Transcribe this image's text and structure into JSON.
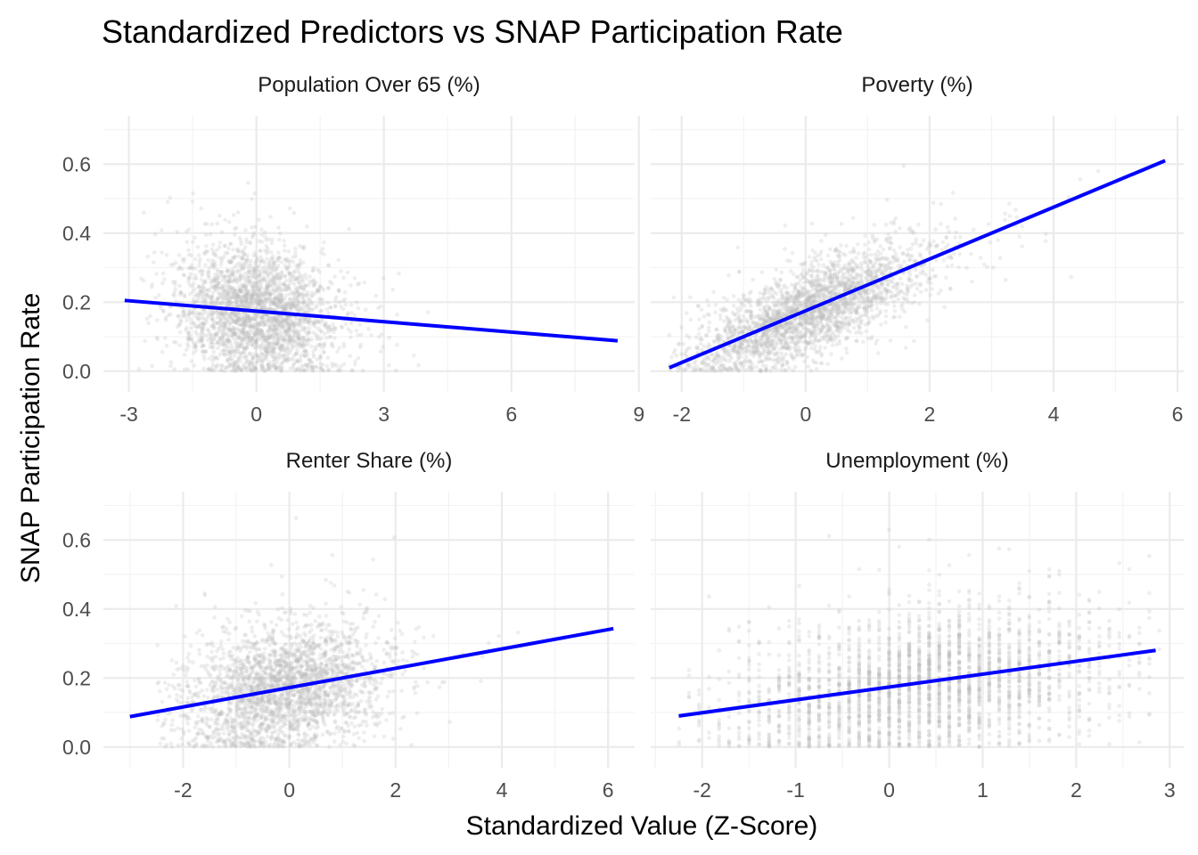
{
  "chart_data": {
    "type": "scatter",
    "title": "Standardized Predictors vs SNAP Participation Rate",
    "xlabel": "Standardized Value (Z-Score)",
    "ylabel": "SNAP Participation Rate",
    "point_color": "#bdbdbd",
    "line_color": "#0000ff",
    "ylim": [
      -0.06,
      0.74
    ],
    "y_ticks": [
      "0.0",
      "0.2",
      "0.4",
      "0.6"
    ],
    "y_tick_values": [
      0,
      0.2,
      0.4,
      0.6
    ],
    "grid": true,
    "panels": [
      {
        "name": "Population Over 65 (%)",
        "x_ticks": [
          "-3",
          "0",
          "3",
          "6",
          "9"
        ],
        "x_tick_values": [
          -3,
          0,
          3,
          6,
          9
        ],
        "xlim": [
          -3.6,
          8.9
        ],
        "trend": {
          "x": [
            -3.1,
            8.5
          ],
          "y": [
            0.205,
            0.088
          ]
        },
        "cloud": {
          "x_min": -2.8,
          "x_max": 4.5,
          "x_center": 0.0,
          "x_sd": 0.9,
          "y_center": 0.17,
          "y_sd": 0.09,
          "slope": -0.01
        }
      },
      {
        "name": "Poverty (%)",
        "x_ticks": [
          "-2",
          "0",
          "2",
          "4",
          "6"
        ],
        "x_tick_values": [
          -2,
          0,
          2,
          4,
          6
        ],
        "xlim": [
          -2.5,
          6.1
        ],
        "trend": {
          "x": [
            -2.2,
            5.8
          ],
          "y": [
            0.01,
            0.61
          ]
        },
        "cloud": {
          "x_min": -2.2,
          "x_max": 5.7,
          "x_center": 0.0,
          "x_sd": 0.95,
          "y_center": 0.17,
          "y_sd": 0.06,
          "slope": 0.075
        }
      },
      {
        "name": "Renter Share (%)",
        "x_ticks": [
          "-2",
          "0",
          "2",
          "4",
          "6"
        ],
        "x_tick_values": [
          -2,
          0,
          2,
          4,
          6
        ],
        "xlim": [
          -3.5,
          6.5
        ],
        "trend": {
          "x": [
            -3.0,
            6.1
          ],
          "y": [
            0.088,
            0.343
          ]
        },
        "cloud": {
          "x_min": -2.5,
          "x_max": 6.0,
          "x_center": -0.1,
          "x_sd": 0.9,
          "y_center": 0.17,
          "y_sd": 0.085,
          "slope": 0.028
        }
      },
      {
        "name": "Unemployment (%)",
        "x_ticks": [
          "-2",
          "-1",
          "0",
          "1",
          "2",
          "3"
        ],
        "x_tick_values": [
          -2,
          -1,
          0,
          1,
          2,
          3
        ],
        "xlim": [
          -2.55,
          3.15
        ],
        "trend": {
          "x": [
            -2.25,
            2.85
          ],
          "y": [
            0.09,
            0.28
          ]
        },
        "cloud": {
          "x_min": -2.25,
          "x_max": 2.85,
          "x_center": 0.3,
          "x_sd": 1.0,
          "y_center": 0.18,
          "y_sd": 0.1,
          "slope": 0.037,
          "discrete_step": 0.107
        }
      }
    ]
  }
}
